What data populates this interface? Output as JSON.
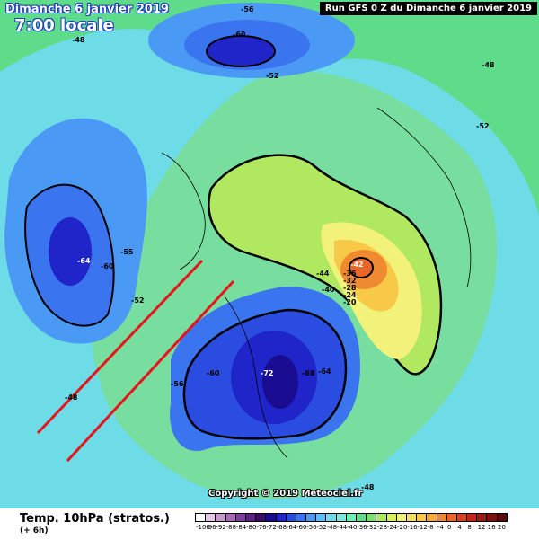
{
  "header": {
    "date": "Dimanche 6 janvier 2019",
    "time": "7:00 locale",
    "run": "Run GFS 0 Z du Dimanche 6 janvier 2019"
  },
  "footer": {
    "copyright": "Copyright © 2019 Meteociel.fr",
    "parameter": "Temp. 10hPa (stratos.)",
    "step": "(+ 6h)"
  },
  "contour_labels": [
    "-56",
    "-60",
    "-48",
    "-52",
    "-48",
    "-52",
    "-55",
    "-60",
    "-64",
    "-52",
    "-44",
    "-40",
    "-42",
    "-36",
    "-32",
    "-28",
    "-24",
    "-20",
    "-56",
    "-60",
    "-72",
    "-68",
    "-64",
    "-48",
    "-48"
  ],
  "scale": {
    "labels": [
      "-100",
      "-96",
      "-92",
      "-88",
      "-84",
      "-80",
      "-76",
      "-72",
      "-68",
      "-64",
      "-60",
      "-56",
      "-52",
      "-48",
      "-44",
      "-40",
      "-36",
      "-32",
      "-28",
      "-24",
      "-20",
      "-16",
      "-12",
      "-8",
      "-4",
      "0",
      "4",
      "8",
      "12",
      "16",
      "20"
    ],
    "colors": [
      "#ffffff",
      "#e8c8e8",
      "#c89ad0",
      "#a86ab8",
      "#80409c",
      "#5c2080",
      "#3c0c68",
      "#1a0c90",
      "#1f25c8",
      "#2a4ce0",
      "#3a74ee",
      "#4a9af5",
      "#5cbff8",
      "#6fdcf0",
      "#7aeadc",
      "#6ef0b0",
      "#5fdc8a",
      "#7ee070",
      "#b0e860",
      "#d8ef5a",
      "#f2f27a",
      "#f7e15e",
      "#f8c848",
      "#f5ac3a",
      "#f08a30",
      "#e8662a",
      "#d84020",
      "#c0241a",
      "#9c1a16",
      "#7a1212",
      "#5a0c0c"
    ]
  },
  "colors": {
    "background": "#5fdc8a",
    "annotation_arrow": "#e8141c"
  }
}
